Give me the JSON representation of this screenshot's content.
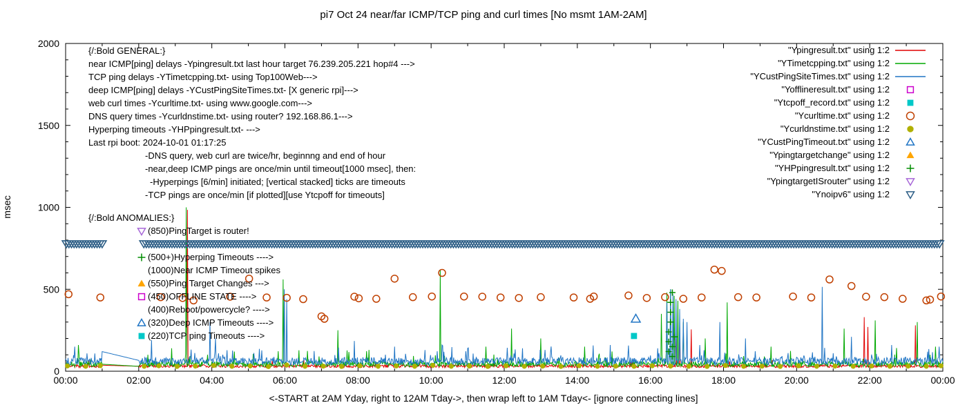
{
  "title": "pi7 Oct 24  near/far ICMP/TCP ping and curl times [No msmt 1AM-2AM]",
  "xlabel": "<-START at 2AM Yday, right to 12AM Tday->, then wrap left to 1AM Tday<- [ignore connecting lines]",
  "ylabel": "msec",
  "legend": {
    "items": [
      {
        "label": "\"Ypingresult.txt\" using 1:2",
        "sample": "line",
        "color": "#e10000"
      },
      {
        "label": "\"YTimetcpping.txt\" using 1:2",
        "sample": "line",
        "color": "#00a800"
      },
      {
        "label": "\"YCustPingSiteTimes.txt\" using 1:2",
        "sample": "line",
        "color": "#1f74c4"
      },
      {
        "label": "\"Yofflineresult.txt\" using 1:2",
        "sample": "square-open",
        "color": "#cc00cc"
      },
      {
        "label": "\"Ytcpoff_record.txt\" using 1:2",
        "sample": "square-filled",
        "color": "#00c8c8"
      },
      {
        "label": "\"Ycurltime.txt\" using 1:2",
        "sample": "circle-open",
        "color": "#c04000"
      },
      {
        "label": "\"Ycurldnstime.txt\" using 1:2",
        "sample": "circle-filled",
        "color": "#b0b000"
      },
      {
        "label": "\"YCustPingTimeout.txt\" using 1:2",
        "sample": "triangle-open",
        "color": "#1f74c4"
      },
      {
        "label": "\"Ypingtargetchange\" using 1:2",
        "sample": "triangle-filled",
        "color": "#ffa500"
      },
      {
        "label": "\"YHPpingresult.txt\" using 1:2",
        "sample": "plus",
        "color": "#008c00"
      },
      {
        "label": "\"YpingtargetISrouter\" using 1:2",
        "sample": "nabla-open",
        "color": "#a868d8"
      },
      {
        "label": "\"Ynoipv6\" using 1:2",
        "sample": "nabla-open",
        "color": "#2d5e86"
      }
    ]
  },
  "annotations": {
    "general": {
      "header": "{/:Bold GENERAL:}",
      "lines": [
        "near ICMP[ping] delays -Ypingresult.txt last hour target 76.239.205.221 hop#4 --->",
        "TCP ping delays -YTimetcpping.txt- using Top100Web--->",
        "deep ICMP[ping] delays -YCustPingSiteTimes.txt- [X generic rpi]--->",
        "web curl times -Ycurltime.txt- using www.google.com--->",
        "DNS query times -Ycurldnstime.txt- using router? 192.168.86.1--->",
        "Hyperping timeouts -YHPpingresult.txt- --->",
        "Last rpi boot: 2024-10-01 01:17:25"
      ],
      "notes": [
        "-DNS query, web curl are twice/hr, beginnng and end of hour",
        "-near,deep ICMP pings are once/min until timeout[1000 msec], then:",
        "-Hyperpings [6/min] initiated; [vertical stacked] ticks are timeouts",
        "-TCP pings are once/min [if plotted][use Ytcpoff for timeouts]"
      ]
    },
    "anomalies": {
      "header": "{/:Bold ANOMALIES:}",
      "items": [
        {
          "marker": "nabla-open",
          "color": "#a868d8",
          "text": "(850)PingTarget is router!"
        },
        {
          "marker": null,
          "color": null,
          "text": ""
        },
        {
          "marker": "plus",
          "color": "#008c00",
          "text": "(500+)Hyperping Timeouts ---->"
        },
        {
          "marker": null,
          "color": null,
          "text": "(1000)Near ICMP Timeout spikes"
        },
        {
          "marker": "triangle-filled",
          "color": "#ffa500",
          "text": "(550)Ping Target Changes --->"
        },
        {
          "marker": "square-open",
          "color": "#cc00cc",
          "text": "(450)OFFLINE STATE ---->"
        },
        {
          "marker": null,
          "color": null,
          "text": "(400)Reboot/powercycle? ---->"
        },
        {
          "marker": "triangle-open",
          "color": "#1f74c4",
          "text": "(320)Deep ICMP Timeouts ---->"
        },
        {
          "marker": "square-filled",
          "color": "#00c8c8",
          "text": "(220)TCP ping Timeouts ---->"
        }
      ]
    }
  },
  "chart_data": {
    "type": "line",
    "title": "pi7 Oct 24  near/far ICMP/TCP ping and curl times [No msmt 1AM-2AM]",
    "xlabel": "<-START at 2AM Yday, right to 12AM Tday->, then wrap left to 1AM Tday<- [ignore connecting lines]",
    "ylabel": "msec",
    "x_tick_labels": [
      "00:00",
      "02:00",
      "04:00",
      "06:00",
      "08:00",
      "10:00",
      "12:00",
      "14:00",
      "16:00",
      "18:00",
      "20:00",
      "22:00",
      "00:00"
    ],
    "y_tick_values": [
      0,
      500,
      1000,
      1500,
      2000
    ],
    "x_range_hours": [
      0,
      24
    ],
    "ylim": [
      0,
      2000
    ],
    "grid": false,
    "legend_position": "top-right",
    "no_measurement_gap_hours": [
      1,
      2
    ],
    "series": [
      {
        "name": "Ypingresult.txt",
        "style": "line",
        "color": "#e10000",
        "baseline_msec": [
          22,
          40
        ],
        "noise_p": 0.012,
        "noise_max": 35,
        "spikes_h_msec": [
          [
            3.34,
            985
          ],
          [
            16.7,
            300
          ],
          [
            16.8,
            280
          ],
          [
            17.12,
            255
          ],
          [
            21.85,
            330
          ],
          [
            21.95,
            270
          ],
          [
            23.25,
            280
          ]
        ]
      },
      {
        "name": "YTimetcpping.txt",
        "style": "line",
        "color": "#00a800",
        "baseline_msec": [
          26,
          60
        ],
        "noise_p": 0.03,
        "noise_max": 90,
        "spikes_h_msec": [
          [
            0.35,
            160
          ],
          [
            2.9,
            140
          ],
          [
            3.3,
            1000
          ],
          [
            4.62,
            120
          ],
          [
            5.95,
            560
          ],
          [
            7.45,
            250
          ],
          [
            8.3,
            130
          ],
          [
            10.25,
            620
          ],
          [
            11.5,
            150
          ],
          [
            12.2,
            260
          ],
          [
            13.0,
            200
          ],
          [
            14.2,
            150
          ],
          [
            16.3,
            350
          ],
          [
            16.45,
            480
          ],
          [
            16.55,
            500
          ],
          [
            16.65,
            460
          ],
          [
            16.75,
            430
          ],
          [
            16.9,
            300
          ],
          [
            17.5,
            200
          ],
          [
            18.1,
            420
          ],
          [
            19.3,
            150
          ],
          [
            21.3,
            260
          ],
          [
            22.15,
            310
          ],
          [
            23.3,
            300
          ],
          [
            23.8,
            150
          ]
        ]
      },
      {
        "name": "YCustPingSiteTimes.txt",
        "style": "line",
        "color": "#1f74c4",
        "baseline_msec": [
          38,
          85
        ],
        "noise_p": 0.06,
        "noise_max": 80,
        "spikes_h_msec": [
          [
            0.25,
            150
          ],
          [
            2.35,
            190
          ],
          [
            3.95,
            300
          ],
          [
            4.1,
            200
          ],
          [
            5.98,
            500
          ],
          [
            6.05,
            440
          ],
          [
            7.9,
            185
          ],
          [
            9.0,
            150
          ],
          [
            10.3,
            160
          ],
          [
            11.0,
            140
          ],
          [
            12.5,
            140
          ],
          [
            14.9,
            160
          ],
          [
            16.45,
            420
          ],
          [
            16.55,
            500
          ],
          [
            16.62,
            470
          ],
          [
            16.7,
            440
          ],
          [
            16.8,
            380
          ],
          [
            16.9,
            320
          ],
          [
            17.0,
            300
          ],
          [
            17.35,
            160
          ],
          [
            17.9,
            300
          ],
          [
            18.6,
            200
          ],
          [
            20.7,
            515
          ],
          [
            21.5,
            210
          ],
          [
            22.6,
            160
          ],
          [
            23.9,
            150
          ]
        ]
      },
      {
        "name": "Ycurltime.txt",
        "style": "points",
        "marker": "circle-open",
        "color": "#c04000",
        "size": 5,
        "points_h_msec": [
          [
            0.08,
            470
          ],
          [
            0.95,
            450
          ],
          [
            2.6,
            452
          ],
          [
            3.2,
            447
          ],
          [
            3.5,
            432
          ],
          [
            4.5,
            455
          ],
          [
            5.02,
            565
          ],
          [
            5.5,
            450
          ],
          [
            6.05,
            448
          ],
          [
            6.5,
            440
          ],
          [
            7.0,
            335
          ],
          [
            7.08,
            320
          ],
          [
            7.9,
            455
          ],
          [
            8.02,
            445
          ],
          [
            8.5,
            442
          ],
          [
            9.0,
            565
          ],
          [
            9.5,
            452
          ],
          [
            10.02,
            456
          ],
          [
            10.3,
            600
          ],
          [
            10.9,
            456
          ],
          [
            11.4,
            455
          ],
          [
            11.9,
            450
          ],
          [
            12.4,
            447
          ],
          [
            13.0,
            452
          ],
          [
            13.9,
            450
          ],
          [
            14.35,
            442
          ],
          [
            14.45,
            456
          ],
          [
            15.4,
            462
          ],
          [
            15.9,
            447
          ],
          [
            16.4,
            452
          ],
          [
            16.9,
            442
          ],
          [
            17.4,
            450
          ],
          [
            17.75,
            620
          ],
          [
            17.95,
            612
          ],
          [
            18.4,
            452
          ],
          [
            18.9,
            450
          ],
          [
            19.9,
            456
          ],
          [
            20.4,
            450
          ],
          [
            20.9,
            560
          ],
          [
            21.5,
            520
          ],
          [
            21.9,
            455
          ],
          [
            22.4,
            452
          ],
          [
            22.9,
            442
          ],
          [
            23.55,
            432
          ],
          [
            23.65,
            437
          ],
          [
            23.95,
            456
          ]
        ]
      },
      {
        "name": "Ycurldnstime.txt",
        "style": "points",
        "marker": "circle-filled",
        "color": "#b0b000",
        "size": 4.2,
        "points_h_msec": [
          [
            0.05,
            32
          ],
          [
            0.55,
            30
          ],
          [
            0.95,
            34
          ],
          [
            2.15,
            30
          ],
          [
            2.55,
            33
          ],
          [
            3.05,
            29
          ],
          [
            3.55,
            31
          ],
          [
            4.05,
            35
          ],
          [
            4.55,
            30
          ],
          [
            5.05,
            32
          ],
          [
            5.55,
            28
          ],
          [
            6.05,
            38
          ],
          [
            6.55,
            30
          ],
          [
            7.05,
            31
          ],
          [
            7.55,
            29
          ],
          [
            8.05,
            33
          ],
          [
            8.55,
            30
          ],
          [
            9.05,
            32
          ],
          [
            9.55,
            30
          ],
          [
            10.05,
            36
          ],
          [
            10.55,
            30
          ],
          [
            11.05,
            31
          ],
          [
            11.55,
            29
          ],
          [
            12.05,
            33
          ],
          [
            12.55,
            30
          ],
          [
            13.05,
            31
          ],
          [
            13.55,
            29
          ],
          [
            14.05,
            34
          ],
          [
            14.55,
            30
          ],
          [
            15.05,
            31
          ],
          [
            15.55,
            30
          ],
          [
            16.05,
            33
          ],
          [
            16.55,
            31
          ],
          [
            17.05,
            30
          ],
          [
            17.55,
            29
          ],
          [
            18.05,
            35
          ],
          [
            18.55,
            30
          ],
          [
            19.05,
            31
          ],
          [
            19.55,
            29
          ],
          [
            20.05,
            33
          ],
          [
            20.55,
            30
          ],
          [
            21.05,
            31
          ],
          [
            21.55,
            30
          ],
          [
            22.05,
            32
          ],
          [
            22.55,
            30
          ],
          [
            23.05,
            31
          ],
          [
            23.55,
            30
          ],
          [
            23.95,
            33
          ]
        ]
      },
      {
        "name": "YCustPingTimeout.txt",
        "style": "points",
        "marker": "triangle-open",
        "color": "#1f74c4",
        "size": 6.5,
        "points_h_msec": [
          [
            15.6,
            320
          ]
        ]
      },
      {
        "name": "Ytcpoff_record.txt",
        "style": "points",
        "marker": "square-filled",
        "color": "#00c8c8",
        "size": 5.5,
        "points_h_msec": [
          [
            15.55,
            215
          ]
        ]
      },
      {
        "name": "YHPpingresult.txt",
        "style": "points",
        "marker": "plus",
        "color": "#008c00",
        "size": 4.5,
        "points_h_msec": [
          [
            16.5,
            120
          ],
          [
            16.5,
            180
          ],
          [
            16.5,
            240
          ],
          [
            16.55,
            300
          ],
          [
            16.55,
            360
          ],
          [
            16.55,
            420
          ],
          [
            16.6,
            90
          ],
          [
            16.6,
            150
          ],
          [
            16.6,
            480
          ],
          [
            16.65,
            210
          ]
        ]
      },
      {
        "name": "Ynoipv6",
        "style": "band",
        "color": "#2d5e86",
        "y_msec": 775,
        "segments_h": [
          [
            0.02,
            1.07
          ],
          [
            2.14,
            23.98
          ]
        ]
      }
    ]
  }
}
